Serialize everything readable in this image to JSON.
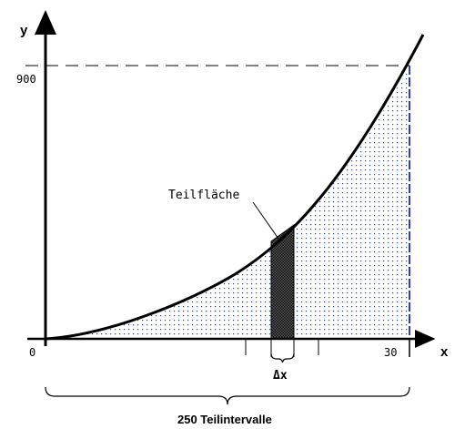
{
  "labels": {
    "y_axis": "y",
    "x_axis": "x",
    "y_tick_900": "900",
    "x_tick_0": "0",
    "x_tick_30": "30",
    "strip_label": "Teilfläche",
    "delta_label": "Δx",
    "bottom_caption": "250 Teilintervalle"
  },
  "colors": {
    "axis": "#000000",
    "curve": "#000000",
    "fill_dots": "#1f3fb0",
    "strip_dark": "#222222",
    "right_edge": "#2a3bd6"
  }
}
